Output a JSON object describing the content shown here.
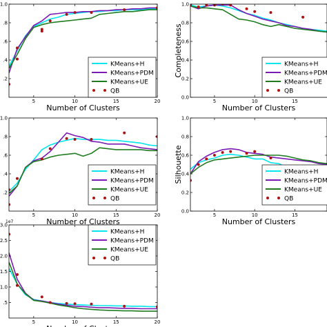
{
  "chart_data": [
    {
      "type": "line",
      "xlabel": "Number of Clusters",
      "ylabel": "",
      "xlim": [
        2,
        20
      ],
      "ylim": [
        0,
        1.0
      ],
      "xticks": [
        "5",
        "10",
        "15",
        "20"
      ],
      "yticks": [
        ".2",
        ".4",
        ".6",
        ".8",
        "1.0"
      ],
      "legend_position": "lower-right",
      "series": [
        {
          "name": "KMeans+H",
          "style": "line",
          "color": "#00e5ee",
          "x": [
            2,
            3,
            4,
            5,
            6,
            7,
            8,
            9,
            10,
            11,
            12,
            13,
            14,
            15,
            16,
            17,
            18,
            19,
            20
          ],
          "y": [
            0.33,
            0.5,
            0.66,
            0.76,
            0.8,
            0.84,
            0.86,
            0.89,
            0.9,
            0.91,
            0.92,
            0.92,
            0.93,
            0.93,
            0.94,
            0.94,
            0.94,
            0.95,
            0.95
          ]
        },
        {
          "name": "KMeans+PDM",
          "style": "line",
          "color": "#7b19b4",
          "x": [
            2,
            3,
            4,
            5,
            6,
            7,
            8,
            9,
            10,
            11,
            12,
            13,
            14,
            15,
            16,
            17,
            18,
            19,
            20
          ],
          "y": [
            0.26,
            0.52,
            0.65,
            0.77,
            0.82,
            0.89,
            0.9,
            0.91,
            0.91,
            0.92,
            0.92,
            0.93,
            0.93,
            0.94,
            0.94,
            0.95,
            0.95,
            0.96,
            0.96
          ]
        },
        {
          "name": "KMeans+UE",
          "style": "line",
          "color": "#1e7b1e",
          "x": [
            2,
            3,
            4,
            5,
            6,
            7,
            8,
            9,
            10,
            11,
            12,
            13,
            14,
            15,
            16,
            17,
            18,
            19,
            20
          ],
          "y": [
            0.31,
            0.46,
            0.63,
            0.75,
            0.78,
            0.8,
            0.81,
            0.82,
            0.83,
            0.84,
            0.85,
            0.89,
            0.9,
            0.91,
            0.92,
            0.92,
            0.93,
            0.94,
            0.94
          ]
        },
        {
          "name": "QB",
          "style": "dots",
          "color": "#b01010",
          "x": [
            2,
            3,
            3,
            6,
            6,
            7,
            9,
            10,
            12,
            16,
            20
          ],
          "y": [
            0.14,
            0.41,
            0.53,
            0.71,
            0.73,
            0.82,
            0.89,
            0.91,
            0.91,
            0.94,
            0.96
          ]
        }
      ]
    },
    {
      "type": "line",
      "xlabel": "Number of Clusters",
      "ylabel": "Completeness",
      "xlim": [
        2,
        19
      ],
      "ylim": [
        0,
        1.0
      ],
      "xticks": [
        "5",
        "10",
        "15"
      ],
      "yticks": [
        "0.0",
        "0.2",
        "0.4",
        "0.6",
        "0.8",
        "1.0"
      ],
      "legend_position": "lower-right",
      "series": [
        {
          "name": "KMeans+H",
          "style": "line",
          "color": "#00e5ee",
          "x": [
            2,
            3,
            4,
            5,
            6,
            7,
            8,
            9,
            10,
            11,
            12,
            13,
            14,
            15,
            16,
            17,
            18,
            19
          ],
          "y": [
            0.99,
            0.97,
            0.98,
            0.99,
            0.98,
            0.96,
            0.93,
            0.9,
            0.88,
            0.85,
            0.83,
            0.8,
            0.78,
            0.76,
            0.74,
            0.73,
            0.72,
            0.71
          ]
        },
        {
          "name": "KMeans+PDM",
          "style": "line",
          "color": "#7b19b4",
          "x": [
            2,
            3,
            4,
            5,
            6,
            7,
            8,
            9,
            10,
            11,
            12,
            13,
            14,
            15,
            16,
            17,
            18,
            19
          ],
          "y": [
            0.98,
            0.95,
            0.98,
            0.99,
            0.99,
            0.99,
            0.94,
            0.9,
            0.87,
            0.84,
            0.82,
            0.8,
            0.77,
            0.76,
            0.74,
            0.73,
            0.71,
            0.7
          ]
        },
        {
          "name": "KMeans+UE",
          "style": "line",
          "color": "#1e7b1e",
          "x": [
            2,
            3,
            4,
            5,
            6,
            7,
            8,
            9,
            10,
            11,
            12,
            13,
            14,
            15,
            16,
            17,
            18,
            19
          ],
          "y": [
            0.98,
            0.96,
            0.96,
            0.95,
            0.94,
            0.89,
            0.84,
            0.83,
            0.81,
            0.78,
            0.76,
            0.78,
            0.76,
            0.74,
            0.73,
            0.72,
            0.71,
            0.7
          ]
        },
        {
          "name": "QB",
          "style": "dots",
          "color": "#b01010",
          "x": [
            2,
            3,
            4,
            5,
            6,
            7,
            9,
            10,
            12,
            16
          ],
          "y": [
            0.99,
            0.97,
            0.99,
            0.99,
            1.0,
            0.99,
            0.95,
            0.92,
            0.91,
            0.86
          ]
        }
      ]
    },
    {
      "type": "line",
      "xlabel": "Number of Clusters",
      "ylabel": "",
      "xlim": [
        2,
        20
      ],
      "ylim": [
        0,
        1.0
      ],
      "xticks": [
        "5",
        "10",
        "15",
        "20"
      ],
      "yticks": [
        ".2",
        ".4",
        ".6",
        ".8",
        "1.0"
      ],
      "legend_position": "lower-right",
      "series": [
        {
          "name": "KMeans+H",
          "style": "line",
          "color": "#00e5ee",
          "x": [
            2,
            3,
            4,
            5,
            6,
            7,
            8,
            9,
            10,
            11,
            12,
            13,
            14,
            15,
            16,
            17,
            18,
            19,
            20
          ],
          "y": [
            0.21,
            0.3,
            0.45,
            0.55,
            0.66,
            0.71,
            0.74,
            0.76,
            0.78,
            0.77,
            0.77,
            0.77,
            0.76,
            0.76,
            0.75,
            0.74,
            0.73,
            0.71,
            0.7
          ]
        },
        {
          "name": "KMeans+PDM",
          "style": "line",
          "color": "#7b19b4",
          "x": [
            2,
            3,
            4,
            5,
            6,
            7,
            8,
            9,
            10,
            11,
            12,
            13,
            14,
            15,
            16,
            17,
            18,
            19,
            20
          ],
          "y": [
            0.16,
            0.27,
            0.47,
            0.54,
            0.57,
            0.64,
            0.74,
            0.84,
            0.81,
            0.79,
            0.75,
            0.74,
            0.72,
            0.72,
            0.72,
            0.7,
            0.68,
            0.67,
            0.66
          ]
        },
        {
          "name": "KMeans+UE",
          "style": "line",
          "color": "#1e7b1e",
          "x": [
            2,
            3,
            4,
            5,
            6,
            7,
            8,
            9,
            10,
            11,
            12,
            13,
            14,
            15,
            16,
            17,
            18,
            19,
            20
          ],
          "y": [
            0.19,
            0.27,
            0.47,
            0.53,
            0.55,
            0.58,
            0.6,
            0.61,
            0.62,
            0.59,
            0.62,
            0.68,
            0.67,
            0.66,
            0.66,
            0.66,
            0.66,
            0.65,
            0.65
          ]
        },
        {
          "name": "QB",
          "style": "dots",
          "color": "#b01010",
          "x": [
            2,
            2,
            3,
            6,
            7,
            9,
            10,
            12,
            16,
            20
          ],
          "y": [
            0.07,
            0.23,
            0.35,
            0.56,
            0.67,
            0.78,
            0.77,
            0.77,
            0.84,
            0.8
          ]
        }
      ]
    },
    {
      "type": "line",
      "xlabel": "Number of Clusters",
      "ylabel": "Silhouette",
      "xlim": [
        2,
        19
      ],
      "ylim": [
        0,
        1.0
      ],
      "xticks": [
        "5",
        "10",
        "15"
      ],
      "yticks": [
        "0.0",
        "0.2",
        "0.4",
        "0.6",
        "0.8",
        "1.0"
      ],
      "legend_position": "lower-right",
      "series": [
        {
          "name": "KMeans+H",
          "style": "line",
          "color": "#00e5ee",
          "x": [
            2,
            3,
            4,
            5,
            6,
            7,
            8,
            9,
            10,
            11,
            12,
            13,
            14,
            15,
            16,
            17,
            18,
            19
          ],
          "y": [
            0.45,
            0.52,
            0.55,
            0.57,
            0.6,
            0.61,
            0.6,
            0.58,
            0.56,
            0.56,
            0.52,
            0.51,
            0.47,
            0.46,
            0.44,
            0.43,
            0.41,
            0.4
          ]
        },
        {
          "name": "KMeans+PDM",
          "style": "line",
          "color": "#7b19b4",
          "x": [
            2,
            3,
            4,
            5,
            6,
            7,
            8,
            9,
            10,
            11,
            12,
            13,
            14,
            15,
            16,
            17,
            18,
            19
          ],
          "y": [
            0.4,
            0.53,
            0.59,
            0.63,
            0.66,
            0.67,
            0.66,
            0.63,
            0.62,
            0.61,
            0.58,
            0.57,
            0.56,
            0.55,
            0.54,
            0.53,
            0.51,
            0.5
          ]
        },
        {
          "name": "KMeans+UE",
          "style": "line",
          "color": "#1e7b1e",
          "x": [
            2,
            3,
            4,
            5,
            6,
            7,
            8,
            9,
            10,
            11,
            12,
            13,
            14,
            15,
            16,
            17,
            18,
            19
          ],
          "y": [
            0.4,
            0.47,
            0.52,
            0.55,
            0.56,
            0.57,
            0.58,
            0.59,
            0.6,
            0.6,
            0.6,
            0.6,
            0.59,
            0.57,
            0.55,
            0.54,
            0.52,
            0.51
          ]
        },
        {
          "name": "QB",
          "style": "dots",
          "color": "#b01010",
          "x": [
            2,
            3,
            4,
            5,
            6,
            7,
            9,
            10,
            12,
            16
          ],
          "y": [
            0.33,
            0.5,
            0.56,
            0.6,
            0.63,
            0.64,
            0.62,
            0.64,
            0.57,
            0.46
          ]
        }
      ]
    },
    {
      "type": "line",
      "xlabel": "Number of Clusters",
      "ylabel": "",
      "sci_label": "1e7",
      "xlim": [
        2,
        20
      ],
      "ylim": [
        0,
        3.0
      ],
      "xticks": [
        "5",
        "10",
        "15",
        "20"
      ],
      "yticks": [
        ".5",
        "1.0",
        "1.5",
        "2.0",
        "2.5",
        "3.0"
      ],
      "legend_position": "top-right",
      "series": [
        {
          "name": "KMeans+H",
          "style": "line",
          "color": "#00e5ee",
          "x": [
            2,
            3,
            4,
            5,
            6,
            7,
            8,
            9,
            10,
            11,
            12,
            13,
            14,
            15,
            16,
            17,
            18,
            19,
            20
          ],
          "y": [
            1.6,
            1.1,
            0.75,
            0.6,
            0.55,
            0.5,
            0.47,
            0.45,
            0.43,
            0.42,
            0.41,
            0.4,
            0.4,
            0.39,
            0.39,
            0.38,
            0.38,
            0.37,
            0.37
          ]
        },
        {
          "name": "KMeans+PDM",
          "style": "line",
          "color": "#7b19b4",
          "x": [
            2,
            3,
            4,
            5,
            6,
            7,
            8,
            9,
            10,
            11,
            12,
            13,
            14,
            15,
            16,
            17,
            18,
            19,
            20
          ],
          "y": [
            2.1,
            1.25,
            0.8,
            0.58,
            0.55,
            0.5,
            0.45,
            0.41,
            0.38,
            0.37,
            0.35,
            0.33,
            0.33,
            0.32,
            0.31,
            0.31,
            0.3,
            0.3,
            0.3
          ]
        },
        {
          "name": "KMeans+UE",
          "style": "line",
          "color": "#1e7b1e",
          "x": [
            2,
            3,
            4,
            5,
            6,
            7,
            8,
            9,
            10,
            11,
            12,
            13,
            14,
            15,
            16,
            17,
            18,
            19,
            20
          ],
          "y": [
            1.8,
            1.1,
            0.78,
            0.57,
            0.53,
            0.48,
            0.42,
            0.38,
            0.33,
            0.3,
            0.28,
            0.26,
            0.25,
            0.24,
            0.23,
            0.23,
            0.22,
            0.22,
            0.22
          ]
        },
        {
          "name": "QB",
          "style": "dots",
          "color": "#b01010",
          "x": [
            2,
            3,
            3,
            6,
            7,
            9,
            10,
            12,
            16,
            20
          ],
          "y": [
            2.7,
            1.4,
            1.05,
            0.68,
            0.5,
            0.47,
            0.46,
            0.45,
            0.38,
            0.36
          ]
        }
      ]
    }
  ]
}
